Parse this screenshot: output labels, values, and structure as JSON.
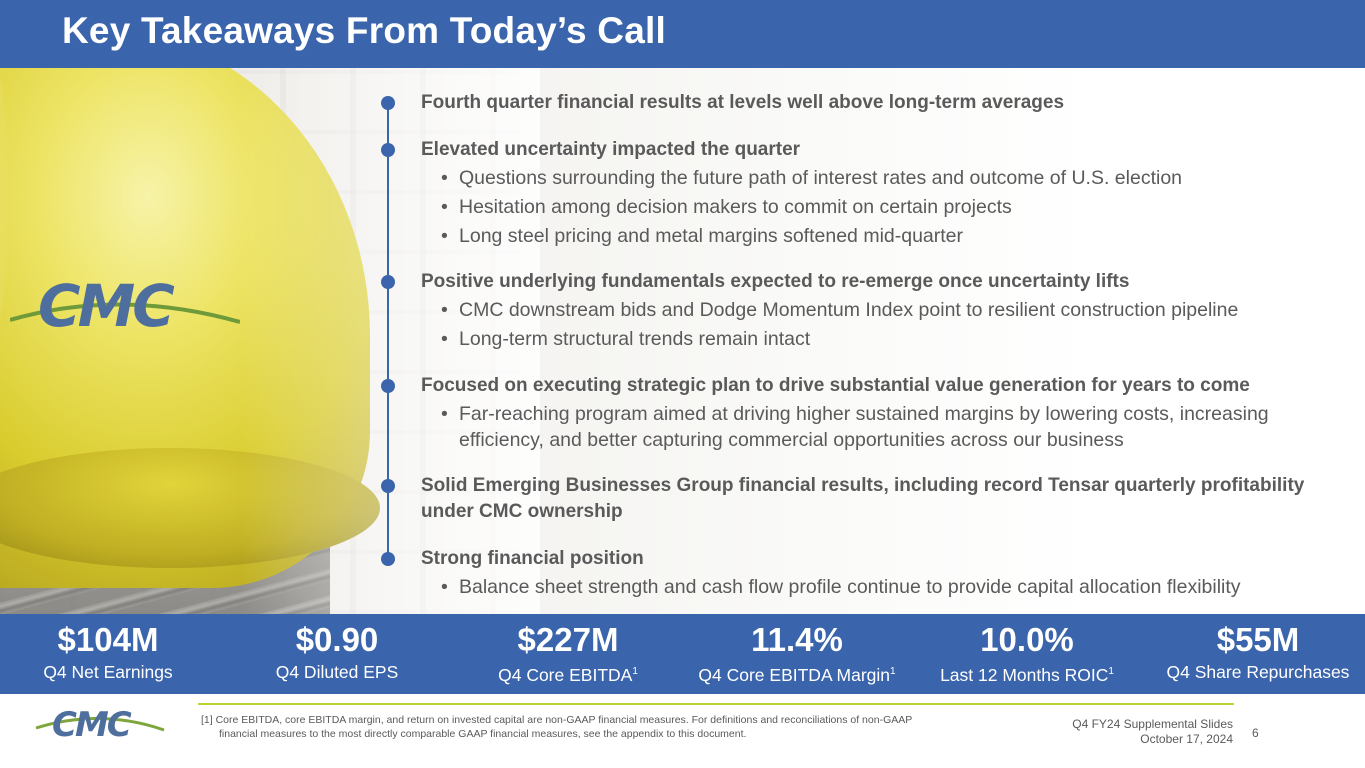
{
  "title": "Key Takeaways From Today’s Call",
  "logo_text": "CMC",
  "takeaways": [
    {
      "heading": "Fourth quarter financial results at levels well above long-term averages",
      "subs": []
    },
    {
      "heading": "Elevated uncertainty impacted the quarter",
      "subs": [
        "Questions surrounding the future path of interest rates and outcome of U.S. election",
        "Hesitation among decision makers to commit on certain projects",
        "Long steel pricing and metal margins softened mid-quarter"
      ]
    },
    {
      "heading": "Positive underlying fundamentals expected to re-emerge once uncertainty lifts",
      "subs": [
        "CMC downstream bids and Dodge Momentum Index point to resilient construction pipeline",
        "Long-term structural trends remain intact"
      ]
    },
    {
      "heading": "Focused on executing strategic plan to drive substantial value generation for years to come",
      "subs": [
        "Far-reaching program aimed at driving higher sustained margins by lowering costs, increasing",
        "efficiency, and better capturing commercial opportunities across our business"
      ]
    },
    {
      "heading": "Solid Emerging Businesses Group financial results, including record Tensar quarterly profitability",
      "heading_line2": "under CMC ownership",
      "subs": []
    },
    {
      "heading": "Strong financial position",
      "subs": [
        "Balance sheet strength and cash flow profile continue to provide capital allocation flexibility"
      ]
    }
  ],
  "stats": [
    {
      "value": "$104M",
      "label": "Q4 Net Earnings",
      "note": ""
    },
    {
      "value": "$0.90",
      "label": "Q4 Diluted EPS",
      "note": ""
    },
    {
      "value": "$227M",
      "label": "Q4 Core EBITDA",
      "note": "1"
    },
    {
      "value": "11.4%",
      "label": "Q4 Core EBITDA Margin",
      "note": "1"
    },
    {
      "value": "10.0%",
      "label": "Last 12 Months ROIC",
      "note": "1"
    },
    {
      "value": "$55M",
      "label": "Q4 Share Repurchases",
      "note": ""
    }
  ],
  "footnote": {
    "line1": "[1] Core EBITDA, core EBITDA margin, and return on invested capital are non-GAAP financial measures. For definitions and reconciliations of non-GAAP",
    "line2": "financial measures to the most directly comparable GAAP financial measures, see the appendix to this document."
  },
  "deck": {
    "name": "Q4 FY24 Supplemental Slides",
    "date": "October 17, 2024",
    "page": "6"
  },
  "colors": {
    "brand_blue": "#3a64ac",
    "accent_green": "#bcd230",
    "text_gray": "#5a5a5a"
  }
}
